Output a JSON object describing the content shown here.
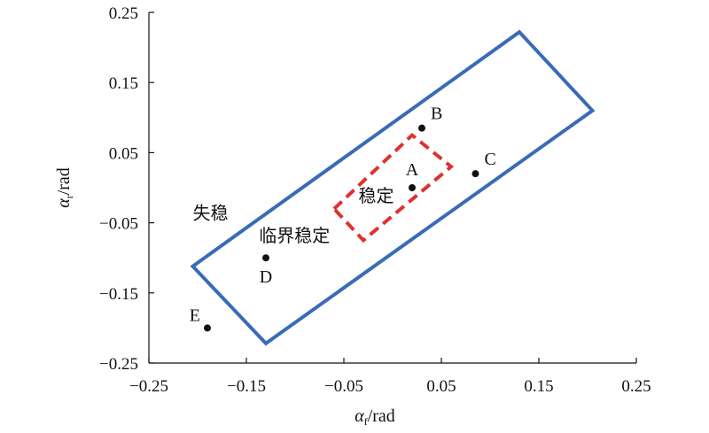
{
  "chart_data": {
    "type": "scatter",
    "title": "",
    "xlabel": {
      "main": "α",
      "sub": "f",
      "unit": "/rad"
    },
    "ylabel": {
      "main": "α",
      "sub": "r",
      "unit": "/rad"
    },
    "xlim": [
      -0.25,
      0.25
    ],
    "ylim": [
      -0.25,
      0.25
    ],
    "xticks": [
      -0.25,
      -0.15,
      -0.05,
      0.05,
      0.15,
      0.25
    ],
    "yticks": [
      -0.25,
      -0.15,
      -0.05,
      0.05,
      0.15,
      0.25
    ],
    "xtick_labels": [
      "−0.25",
      "−0.15",
      "−0.05",
      "0.05",
      "0.15",
      "0.25"
    ],
    "ytick_labels": [
      "−0.25",
      "−0.15",
      "−0.05",
      "0.05",
      "0.15",
      "0.25"
    ],
    "grid": false,
    "points": [
      {
        "label": "A",
        "x": 0.02,
        "y": 0.0,
        "label_pos": "above"
      },
      {
        "label": "B",
        "x": 0.03,
        "y": 0.085,
        "label_pos": "above-right"
      },
      {
        "label": "C",
        "x": 0.085,
        "y": 0.02,
        "label_pos": "above-right"
      },
      {
        "label": "D",
        "x": -0.13,
        "y": -0.1,
        "label_pos": "below"
      },
      {
        "label": "E",
        "x": -0.19,
        "y": -0.2,
        "label_pos": "above-left"
      }
    ],
    "outer_region": {
      "color": "#3a6bb8",
      "style": "solid",
      "vertices": [
        [
          -0.205,
          -0.112
        ],
        [
          0.13,
          0.222
        ],
        [
          0.205,
          0.11
        ],
        [
          -0.13,
          -0.222
        ]
      ]
    },
    "inner_region": {
      "color": "#e03030",
      "style": "dashed",
      "vertices": [
        [
          -0.06,
          -0.03
        ],
        [
          0.02,
          0.075
        ],
        [
          0.06,
          0.03
        ],
        [
          -0.03,
          -0.075
        ]
      ]
    },
    "region_labels": [
      {
        "text": "失稳",
        "x": -0.205,
        "y": -0.045
      },
      {
        "text": "临界稳定",
        "x": -0.137,
        "y": -0.077
      },
      {
        "text": "稳定",
        "x": -0.035,
        "y": -0.02
      }
    ]
  }
}
